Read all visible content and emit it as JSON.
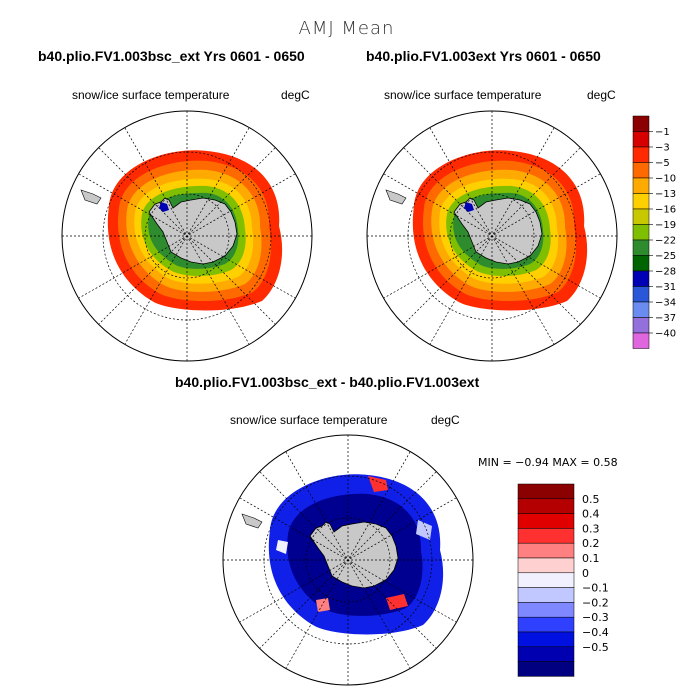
{
  "main_title": "AMJ Mean",
  "panels": [
    {
      "case": "b40.plio.FV1.003bsc_ext  Yrs 0601 - 0650",
      "var": "snow/ice surface temperature",
      "units": "degC"
    },
    {
      "case": "b40.plio.FV1.003ext  Yrs 0601 - 0650",
      "var": "snow/ice surface temperature",
      "units": "degC"
    }
  ],
  "diff_panel": {
    "case": "b40.plio.FV1.003bsc_ext - b40.plio.FV1.003ext",
    "var": "snow/ice surface temperature",
    "units": "degC",
    "stats": "MIN =   −0.94  MAX =    0.58"
  },
  "chart_data": [
    {
      "type": "heatmap",
      "projection": "south polar stereographic",
      "title": "b40.plio.FV1.003bsc_ext  Yrs 0601 - 0650",
      "colorbar": {
        "levels": [
          "−1",
          "−3",
          "−5",
          "−10",
          "−13",
          "−16",
          "−19",
          "−22",
          "−25",
          "−28",
          "−31",
          "−34",
          "−37",
          "−40"
        ],
        "colors": [
          "#8b0000",
          "#d70000",
          "#ff2a00",
          "#ff6a00",
          "#ffaa00",
          "#ffd000",
          "#c8c800",
          "#7fbf00",
          "#2e8b2e",
          "#006400",
          "#0000b4",
          "#2a56d8",
          "#6a8cf0",
          "#9370db",
          "#e066e0"
        ]
      }
    },
    {
      "type": "heatmap",
      "projection": "south polar stereographic",
      "title": "b40.plio.FV1.003ext  Yrs 0601 - 0650",
      "colorbar": "shared"
    },
    {
      "type": "heatmap",
      "projection": "south polar stereographic",
      "title": "b40.plio.FV1.003bsc_ext - b40.plio.FV1.003ext",
      "min": -0.94,
      "max": 0.58,
      "colorbar": {
        "levels": [
          "0.5",
          "0.4",
          "0.3",
          "0.2",
          "0.1",
          "0",
          "−0.1",
          "−0.2",
          "−0.3",
          "−0.4",
          "−0.5"
        ],
        "colors": [
          "#8b0000",
          "#b40000",
          "#e00000",
          "#ff3030",
          "#ff8080",
          "#ffd0d0",
          "#f0f0ff",
          "#c0c8ff",
          "#8088ff",
          "#3040ff",
          "#0010e0",
          "#0000b0",
          "#000080"
        ]
      }
    }
  ]
}
